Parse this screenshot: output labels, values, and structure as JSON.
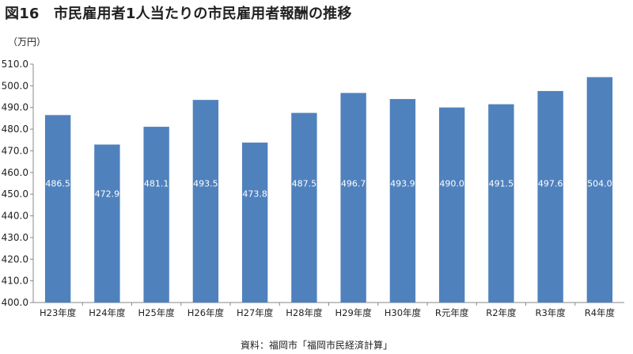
{
  "figure": {
    "title": "図16　市民雇用者1人当たりの市民雇用者報酬の推移",
    "unit_label": "（万円）",
    "source": "資料：福岡市「福岡市民経済計算」"
  },
  "chart_data": {
    "type": "bar",
    "categories": [
      "H23年度",
      "H24年度",
      "H25年度",
      "H26年度",
      "H27年度",
      "H28年度",
      "H29年度",
      "H30年度",
      "R元年度",
      "R2年度",
      "R3年度",
      "R4年度"
    ],
    "values": [
      486.5,
      472.9,
      481.1,
      493.5,
      473.8,
      487.5,
      496.7,
      493.9,
      490.0,
      491.5,
      497.6,
      504.0
    ],
    "value_labels": [
      "486.5",
      "472.9",
      "481.1",
      "493.5",
      "473.8",
      "487.5",
      "496.7",
      "493.9",
      "490.0",
      "491.5",
      "497.6",
      "504.0"
    ],
    "yticks": [
      "400.0",
      "410.0",
      "420.0",
      "430.0",
      "440.0",
      "450.0",
      "460.0",
      "470.0",
      "480.0",
      "490.0",
      "500.0",
      "510.0"
    ],
    "ylim": [
      400,
      510
    ],
    "bar_color": "#4f81bd",
    "grid": false,
    "legend": "none"
  }
}
